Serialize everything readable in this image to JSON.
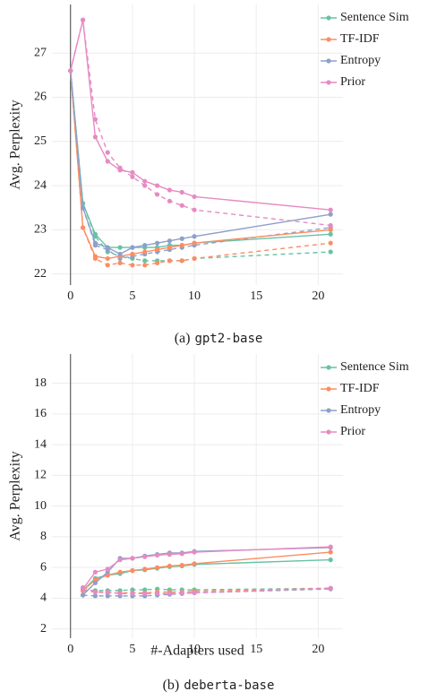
{
  "chart_data": [
    {
      "type": "line",
      "y_label": "Avg. Perplexity",
      "caption_label": "(a)",
      "caption_model": "gpt2-base",
      "x": [
        0,
        1,
        2,
        3,
        4,
        5,
        6,
        7,
        8,
        9,
        10,
        21
      ],
      "xlim": [
        -1.5,
        22
      ],
      "xticks": [
        0,
        5,
        10,
        15,
        20
      ],
      "ylim": [
        21.75,
        28.1
      ],
      "yticks": [
        22,
        23,
        24,
        25,
        26,
        27
      ],
      "grid": true,
      "legend": "top-right",
      "series": [
        {
          "name": "Sentence Sim",
          "color": "#66c2a5",
          "values": [
            26.6,
            23.6,
            22.9,
            22.6,
            22.6,
            22.6,
            22.6,
            22.6,
            22.65,
            22.65,
            22.7,
            22.9
          ]
        },
        {
          "name": "TF-IDF",
          "color": "#fc8d62",
          "values": [
            26.6,
            23.05,
            22.4,
            22.35,
            22.4,
            22.45,
            22.5,
            22.55,
            22.6,
            22.65,
            22.7,
            23.0
          ]
        },
        {
          "name": "Entropy",
          "color": "#8da0cb",
          "values": [
            26.6,
            23.5,
            22.7,
            22.6,
            22.45,
            22.6,
            22.65,
            22.7,
            22.75,
            22.8,
            22.85,
            23.35
          ]
        },
        {
          "name": "Prior",
          "color": "#e78ac3",
          "values": [
            26.6,
            27.75,
            25.1,
            24.55,
            24.35,
            24.3,
            24.1,
            24.0,
            23.9,
            23.85,
            23.75,
            23.45
          ]
        }
      ],
      "dashed_series": [
        {
          "color": "#66c2a5",
          "values": [
            26.6,
            23.6,
            22.85,
            22.5,
            22.4,
            22.35,
            22.3,
            22.3,
            22.3,
            22.3,
            22.35,
            22.5
          ]
        },
        {
          "color": "#fc8d62",
          "values": [
            26.6,
            23.05,
            22.35,
            22.2,
            22.25,
            22.2,
            22.2,
            22.25,
            22.3,
            22.3,
            22.35,
            22.7
          ]
        },
        {
          "color": "#8da0cb",
          "values": [
            26.6,
            23.5,
            22.65,
            22.55,
            22.35,
            22.4,
            22.45,
            22.5,
            22.55,
            22.6,
            22.65,
            23.05
          ]
        },
        {
          "color": "#e78ac3",
          "values": [
            26.6,
            27.75,
            25.5,
            24.75,
            24.4,
            24.2,
            24.0,
            23.8,
            23.65,
            23.55,
            23.45,
            23.1
          ]
        }
      ]
    },
    {
      "type": "line",
      "y_label": "Avg. Perplexity",
      "x_label": "#-Adapters used",
      "caption_label": "(b)",
      "caption_model": "deberta-base",
      "x": [
        1,
        2,
        3,
        4,
        5,
        6,
        7,
        8,
        9,
        10,
        21
      ],
      "xlim": [
        -1.5,
        22
      ],
      "xticks": [
        0,
        5,
        10,
        15,
        20
      ],
      "ylim": [
        1.4,
        19.9
      ],
      "yticks": [
        2,
        4,
        6,
        8,
        10,
        12,
        14,
        16,
        18
      ],
      "grid": true,
      "legend": "top-right",
      "series": [
        {
          "name": "Sentence Sim",
          "color": "#66c2a5",
          "values": [
            4.5,
            5.3,
            5.5,
            5.6,
            5.8,
            5.85,
            5.95,
            6.05,
            6.1,
            6.2,
            6.5
          ]
        },
        {
          "name": "TF-IDF",
          "color": "#fc8d62",
          "values": [
            4.5,
            5.2,
            5.5,
            5.7,
            5.8,
            5.9,
            6.0,
            6.1,
            6.15,
            6.25,
            7.0
          ]
        },
        {
          "name": "Entropy",
          "color": "#8da0cb",
          "values": [
            4.2,
            5.0,
            5.7,
            6.6,
            6.6,
            6.75,
            6.85,
            6.95,
            6.95,
            7.05,
            7.3
          ]
        },
        {
          "name": "Prior",
          "color": "#e78ac3",
          "values": [
            4.6,
            5.7,
            5.9,
            6.5,
            6.6,
            6.7,
            6.8,
            6.85,
            6.9,
            7.0,
            7.35
          ]
        }
      ],
      "dashed_series": [
        {
          "color": "#66c2a5",
          "values": [
            4.5,
            4.5,
            4.5,
            4.5,
            4.55,
            4.55,
            4.6,
            4.55,
            4.55,
            4.55,
            4.65
          ]
        },
        {
          "color": "#fc8d62",
          "values": [
            4.5,
            4.4,
            4.35,
            4.35,
            4.35,
            4.35,
            4.4,
            4.4,
            4.4,
            4.45,
            4.65
          ]
        },
        {
          "color": "#8da0cb",
          "values": [
            4.2,
            4.15,
            4.15,
            4.15,
            4.15,
            4.15,
            4.2,
            4.25,
            4.3,
            4.35,
            4.6
          ]
        },
        {
          "color": "#e78ac3",
          "values": [
            4.7,
            4.4,
            4.4,
            4.3,
            4.3,
            4.3,
            4.3,
            4.3,
            4.35,
            4.35,
            4.65
          ]
        }
      ]
    }
  ]
}
